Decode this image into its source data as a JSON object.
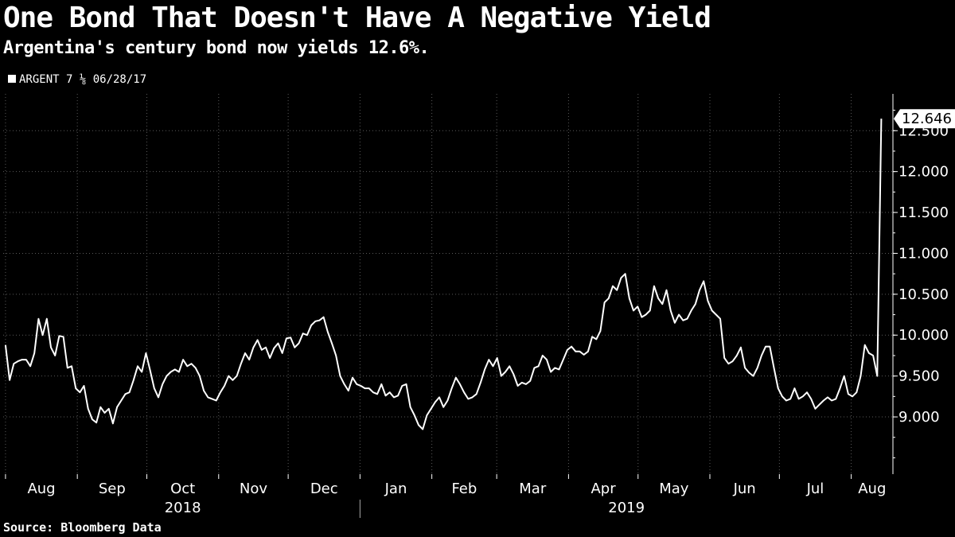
{
  "title": "One Bond That Doesn't Have A Negative Yield",
  "subtitle": "Argentina's century bond now yields 12.6%.",
  "source": "Source: Bloomberg Data",
  "colors": {
    "background": "#000000",
    "line": "#ffffff",
    "grid": "#5a5a5a"
  },
  "chart_data": {
    "type": "line",
    "title": "One Bond That Doesn't Have A Negative Yield",
    "subtitle": "Argentina's century bond now yields 12.6%.",
    "legend": {
      "placement": "top-left",
      "entries": [
        "ARGENT 7 ⅛ 06/28/17"
      ]
    },
    "series": [
      {
        "name": "ARGENT 7 ⅛ 06/28/17",
        "x_start": "2018-08-01",
        "x_end": "2019-08-14",
        "values": [
          9.88,
          9.45,
          9.65,
          9.68,
          9.7,
          9.7,
          9.62,
          9.78,
          10.2,
          10.0,
          10.2,
          9.85,
          9.75,
          9.99,
          9.98,
          9.6,
          9.62,
          9.35,
          9.3,
          9.38,
          9.1,
          8.97,
          8.93,
          9.12,
          9.05,
          9.1,
          8.92,
          9.12,
          9.2,
          9.28,
          9.3,
          9.45,
          9.62,
          9.55,
          9.78,
          9.57,
          9.35,
          9.24,
          9.4,
          9.5,
          9.55,
          9.58,
          9.55,
          9.7,
          9.62,
          9.65,
          9.6,
          9.5,
          9.32,
          9.24,
          9.22,
          9.2,
          9.3,
          9.38,
          9.5,
          9.45,
          9.5,
          9.65,
          9.78,
          9.7,
          9.85,
          9.94,
          9.82,
          9.85,
          9.72,
          9.84,
          9.9,
          9.78,
          9.96,
          9.97,
          9.85,
          9.9,
          10.02,
          10.0,
          10.12,
          10.17,
          10.18,
          10.22,
          10.04,
          9.9,
          9.75,
          9.5,
          9.4,
          9.32,
          9.48,
          9.4,
          9.38,
          9.35,
          9.35,
          9.3,
          9.28,
          9.4,
          9.26,
          9.3,
          9.24,
          9.26,
          9.38,
          9.4,
          9.12,
          9.02,
          8.9,
          8.85,
          9.02,
          9.1,
          9.18,
          9.24,
          9.12,
          9.2,
          9.35,
          9.48,
          9.4,
          9.3,
          9.22,
          9.24,
          9.28,
          9.42,
          9.58,
          9.7,
          9.62,
          9.72,
          9.5,
          9.55,
          9.62,
          9.52,
          9.38,
          9.42,
          9.4,
          9.44,
          9.6,
          9.62,
          9.75,
          9.7,
          9.55,
          9.6,
          9.58,
          9.7,
          9.82,
          9.86,
          9.8,
          9.8,
          9.76,
          9.8,
          9.98,
          9.95,
          10.05,
          10.4,
          10.45,
          10.6,
          10.55,
          10.7,
          10.75,
          10.45,
          10.3,
          10.35,
          10.22,
          10.25,
          10.3,
          10.6,
          10.45,
          10.38,
          10.55,
          10.3,
          10.15,
          10.25,
          10.18,
          10.2,
          10.3,
          10.38,
          10.55,
          10.66,
          10.42,
          10.3,
          10.25,
          10.2,
          9.72,
          9.65,
          9.68,
          9.75,
          9.85,
          9.6,
          9.54,
          9.5,
          9.6,
          9.75,
          9.86,
          9.86,
          9.6,
          9.35,
          9.25,
          9.2,
          9.22,
          9.35,
          9.22,
          9.25,
          9.3,
          9.22,
          9.1,
          9.15,
          9.2,
          9.24,
          9.2,
          9.22,
          9.35,
          9.5,
          9.28,
          9.25,
          9.3,
          9.5,
          9.88,
          9.78,
          9.75,
          9.5,
          12.646
        ]
      }
    ],
    "last_value_label": "12.646",
    "y_ticks": [
      "9.000",
      "9.500",
      "10.000",
      "10.500",
      "11.000",
      "11.500",
      "12.000",
      "12.500"
    ],
    "y_tick_values": [
      9.0,
      9.5,
      10.0,
      10.5,
      11.0,
      11.5,
      12.0,
      12.5
    ],
    "ylim": [
      8.3,
      12.95
    ],
    "x_months": [
      {
        "label": "Aug",
        "date": "2018-08-01"
      },
      {
        "label": "Sep",
        "date": "2018-09-01"
      },
      {
        "label": "Oct",
        "date": "2018-10-01"
      },
      {
        "label": "Nov",
        "date": "2018-11-01"
      },
      {
        "label": "Dec",
        "date": "2018-12-01"
      },
      {
        "label": "Jan",
        "date": "2019-01-01"
      },
      {
        "label": "Feb",
        "date": "2019-02-01"
      },
      {
        "label": "Mar",
        "date": "2019-03-01"
      },
      {
        "label": "Apr",
        "date": "2019-04-01"
      },
      {
        "label": "May",
        "date": "2019-05-01"
      },
      {
        "label": "Jun",
        "date": "2019-06-01"
      },
      {
        "label": "Jul",
        "date": "2019-07-01"
      },
      {
        "label": "Aug",
        "date": "2019-08-01"
      }
    ],
    "x_years": [
      "2018",
      "2019"
    ],
    "grid": true,
    "y_axis_side": "right"
  }
}
